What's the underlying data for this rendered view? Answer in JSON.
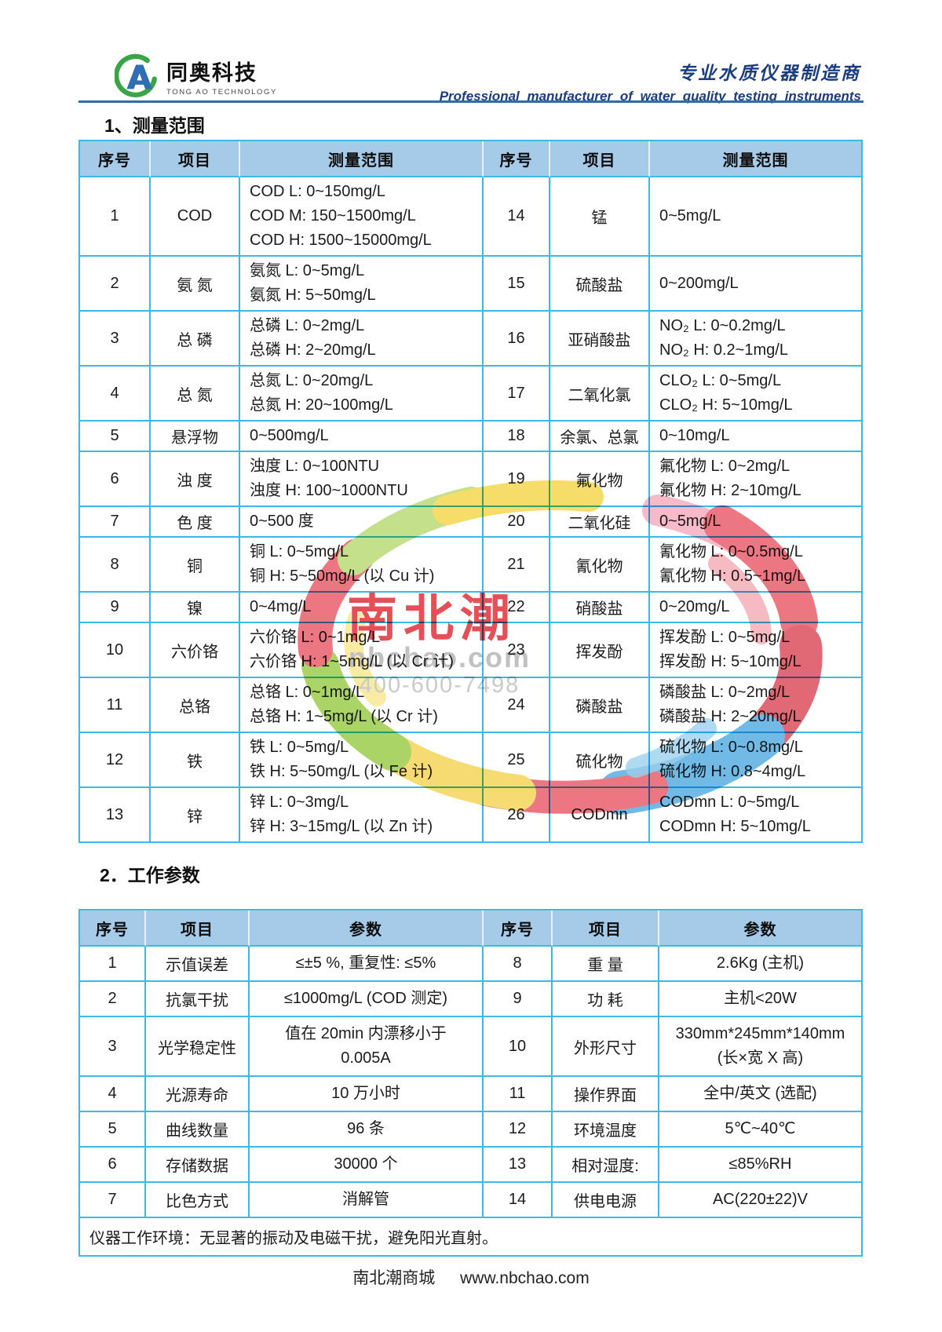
{
  "header": {
    "brand_cn": "同奥科技",
    "brand_en": "TONG AO TECHNOLOGY",
    "slogan_cn": "专业水质仪器制造商",
    "slogan_en": "Professional  manufacturer  of  water  quality  testing  instruments"
  },
  "section1_title": "1、测量范围",
  "section2_title": "2．工作参数",
  "colors": {
    "table_border": "#3db9e5",
    "header_bg": "#a6cbe9",
    "navy": "#1a3c80",
    "logo_green": "#3aa546",
    "logo_blue": "#2f6db4"
  },
  "table1": {
    "headers": [
      "序号",
      "项目",
      "测量范围",
      "序号",
      "项目",
      "测量范围"
    ],
    "rows": [
      {
        "l": {
          "no": "1",
          "item": "COD",
          "lines": [
            "COD L: 0~150mg/L",
            "COD M: 150~1500mg/L",
            "COD H: 1500~15000mg/L"
          ]
        },
        "r": {
          "no": "14",
          "item": "锰",
          "lines": [
            "0~5mg/L"
          ]
        }
      },
      {
        "l": {
          "no": "2",
          "item": "氨 氮",
          "lines": [
            "氨氮 L: 0~5mg/L",
            "氨氮 H: 5~50mg/L"
          ]
        },
        "r": {
          "no": "15",
          "item": "硫酸盐",
          "lines": [
            "0~200mg/L"
          ]
        }
      },
      {
        "l": {
          "no": "3",
          "item": "总 磷",
          "lines": [
            "总磷 L: 0~2mg/L",
            "总磷 H: 2~20mg/L"
          ]
        },
        "r": {
          "no": "16",
          "item": "亚硝酸盐",
          "lines": [
            "NO₂ L: 0~0.2mg/L",
            "NO₂ H: 0.2~1mg/L"
          ]
        }
      },
      {
        "l": {
          "no": "4",
          "item": "总 氮",
          "lines": [
            "总氮 L: 0~20mg/L",
            "总氮 H: 20~100mg/L"
          ]
        },
        "r": {
          "no": "17",
          "item": "二氧化氯",
          "lines": [
            "CLO₂ L: 0~5mg/L",
            "CLO₂ H: 5~10mg/L"
          ]
        }
      },
      {
        "l": {
          "no": "5",
          "item": "悬浮物",
          "lines": [
            "0~500mg/L"
          ]
        },
        "r": {
          "no": "18",
          "item": "余氯、总氯",
          "lines": [
            "0~10mg/L"
          ]
        }
      },
      {
        "l": {
          "no": "6",
          "item": "浊 度",
          "lines": [
            "浊度 L: 0~100NTU",
            "浊度 H: 100~1000NTU"
          ]
        },
        "r": {
          "no": "19",
          "item": "氟化物",
          "lines": [
            "氟化物 L: 0~2mg/L",
            "氟化物 H: 2~10mg/L"
          ]
        }
      },
      {
        "l": {
          "no": "7",
          "item": "色 度",
          "lines": [
            "0~500 度"
          ]
        },
        "r": {
          "no": "20",
          "item": "二氧化硅",
          "lines": [
            "0~5mg/L"
          ]
        }
      },
      {
        "l": {
          "no": "8",
          "item": "铜",
          "lines": [
            "铜 L: 0~5mg/L",
            "铜 H: 5~50mg/L (以 Cu 计)"
          ]
        },
        "r": {
          "no": "21",
          "item": "氰化物",
          "lines": [
            "氰化物 L: 0~0.5mg/L",
            "氰化物 H: 0.5~1mg/L"
          ]
        }
      },
      {
        "l": {
          "no": "9",
          "item": "镍",
          "lines": [
            "0~4mg/L"
          ]
        },
        "r": {
          "no": "22",
          "item": "硝酸盐",
          "lines": [
            "0~20mg/L"
          ]
        }
      },
      {
        "l": {
          "no": "10",
          "item": "六价铬",
          "lines": [
            "六价铬 L: 0~1mg/L",
            "六价铬 H: 1~5mg/L (以 Cr 计)"
          ]
        },
        "r": {
          "no": "23",
          "item": "挥发酚",
          "lines": [
            "挥发酚 L: 0~5mg/L",
            "挥发酚 H: 5~10mg/L"
          ]
        }
      },
      {
        "l": {
          "no": "11",
          "item": "总铬",
          "lines": [
            "总铬 L: 0~1mg/L",
            "总铬 H: 1~5mg/L (以 Cr 计)"
          ]
        },
        "r": {
          "no": "24",
          "item": "磷酸盐",
          "lines": [
            "磷酸盐 L: 0~2mg/L",
            "磷酸盐 H: 2~20mg/L"
          ]
        }
      },
      {
        "l": {
          "no": "12",
          "item": "铁",
          "lines": [
            "铁 L: 0~5mg/L",
            "铁 H: 5~50mg/L (以 Fe 计)"
          ]
        },
        "r": {
          "no": "25",
          "item": "硫化物",
          "lines": [
            "硫化物 L: 0~0.8mg/L",
            "硫化物 H: 0.8~4mg/L"
          ]
        }
      },
      {
        "l": {
          "no": "13",
          "item": "锌",
          "lines": [
            "锌 L: 0~3mg/L",
            "锌 H: 3~15mg/L (以 Zn 计)"
          ]
        },
        "r": {
          "no": "26",
          "item": "CODmn",
          "lines": [
            "CODmn L: 0~5mg/L",
            "CODmn H: 5~10mg/L"
          ]
        }
      }
    ]
  },
  "table2": {
    "headers": [
      "序号",
      "项目",
      "参数",
      "序号",
      "项目",
      "参数"
    ],
    "rows": [
      {
        "l": {
          "no": "1",
          "item": "示值误差",
          "lines": [
            "≤±5 %, 重复性: ≤5%"
          ]
        },
        "r": {
          "no": "8",
          "item": "重 量",
          "lines": [
            "2.6Kg (主机)"
          ]
        }
      },
      {
        "l": {
          "no": "2",
          "item": "抗氯干扰",
          "lines": [
            "≤1000mg/L (COD 测定)"
          ]
        },
        "r": {
          "no": "9",
          "item": "功 耗",
          "lines": [
            "主机<20W"
          ]
        }
      },
      {
        "l": {
          "no": "3",
          "item": "光学稳定性",
          "lines": [
            "值在 20min 内漂移小于",
            "0.005A"
          ]
        },
        "r": {
          "no": "10",
          "item": "外形尺寸",
          "lines": [
            "330mm*245mm*140mm",
            "(长×宽 X 高)"
          ]
        }
      },
      {
        "l": {
          "no": "4",
          "item": "光源寿命",
          "lines": [
            "10 万小时"
          ]
        },
        "r": {
          "no": "11",
          "item": "操作界面",
          "lines": [
            "全中/英文 (选配)"
          ]
        }
      },
      {
        "l": {
          "no": "5",
          "item": "曲线数量",
          "lines": [
            "96 条"
          ]
        },
        "r": {
          "no": "12",
          "item": "环境温度",
          "lines": [
            "5℃~40℃"
          ]
        }
      },
      {
        "l": {
          "no": "6",
          "item": "存储数据",
          "lines": [
            "30000 个"
          ]
        },
        "r": {
          "no": "13",
          "item": "相对湿度:",
          "lines": [
            "≤85%RH"
          ]
        }
      },
      {
        "l": {
          "no": "7",
          "item": "比色方式",
          "lines": [
            "消解管"
          ]
        },
        "r": {
          "no": "14",
          "item": "供电电源",
          "lines": [
            "AC(220±22)V"
          ]
        }
      }
    ],
    "note": "仪器工作环境：无显著的振动及电磁干扰，避免阳光直射。"
  },
  "watermark": {
    "text": "南北潮",
    "domain": "nbchao.com",
    "phone": "400-600-7498"
  },
  "footer": {
    "site": "南北潮商城",
    "url": "www.nbchao.com"
  }
}
